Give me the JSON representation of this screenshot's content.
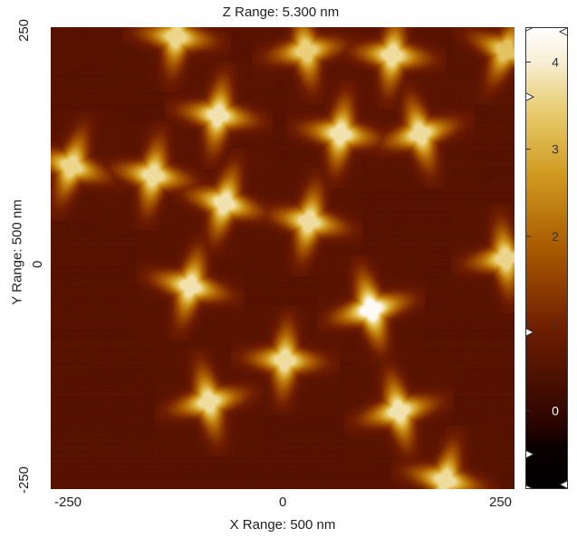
{
  "chart_data": {
    "type": "heatmap",
    "title": "Z Range:  5.300 nm",
    "xlabel": "X Range: 500 nm",
    "ylabel": "Y Range: 500 nm",
    "xlim": [
      -250,
      250
    ],
    "ylim": [
      -250,
      250
    ],
    "x_ticks": [
      "-250",
      "0",
      "250"
    ],
    "y_ticks": [
      "250",
      "0",
      "-250"
    ],
    "colorbar": {
      "zlim": [
        -0.9,
        4.4
      ],
      "ticks": [
        "4",
        "3",
        "2",
        "1",
        "0"
      ],
      "tick_values": [
        4,
        3,
        2,
        1,
        0
      ],
      "marker_values": [
        4.4,
        3.6,
        0.9,
        -0.5,
        -0.9
      ]
    },
    "background_height": 0.45,
    "features": [
      {
        "x": -115,
        "y": 240,
        "height": 3.6
      },
      {
        "x": 25,
        "y": 225,
        "height": 3.5
      },
      {
        "x": 118,
        "y": 220,
        "height": 3.7
      },
      {
        "x": 240,
        "y": 225,
        "height": 3.3
      },
      {
        "x": -70,
        "y": 155,
        "height": 3.8
      },
      {
        "x": 62,
        "y": 135,
        "height": 3.8
      },
      {
        "x": 148,
        "y": 135,
        "height": 3.7
      },
      {
        "x": -228,
        "y": 100,
        "height": 3.6
      },
      {
        "x": -140,
        "y": 90,
        "height": 3.7
      },
      {
        "x": -63,
        "y": 60,
        "height": 3.8
      },
      {
        "x": 28,
        "y": 40,
        "height": 3.7
      },
      {
        "x": 240,
        "y": 0,
        "height": 3.6
      },
      {
        "x": -100,
        "y": -30,
        "height": 3.8
      },
      {
        "x": 95,
        "y": -55,
        "height": 4.3
      },
      {
        "x": 2,
        "y": -110,
        "height": 3.7
      },
      {
        "x": -80,
        "y": -155,
        "height": 3.7
      },
      {
        "x": 125,
        "y": -165,
        "height": 3.8
      },
      {
        "x": 175,
        "y": -240,
        "height": 3.7
      }
    ],
    "colors": {
      "low": "#000000",
      "dark_brown": "#4a0c00",
      "mid": "#8a2e00",
      "gold": "#c98f10",
      "high": "#ffffff"
    }
  }
}
